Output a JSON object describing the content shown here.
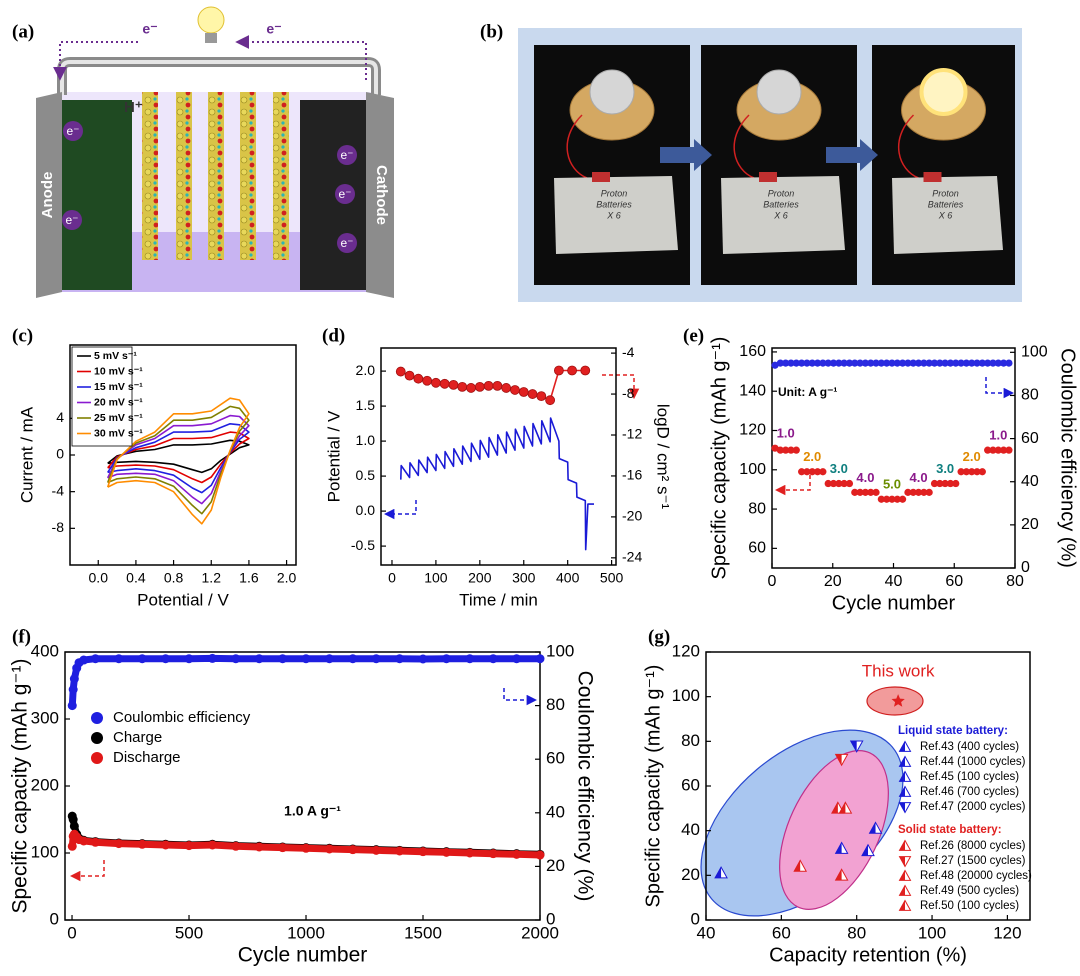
{
  "diagram": {
    "label": "(a)",
    "electron_flow": [
      "e⁻",
      "e⁻"
    ],
    "ion": "H⁺",
    "anode": "Anode",
    "cathode": "Cathode",
    "electrons": [
      "e⁻",
      "e⁻",
      "e⁻",
      "e⁻",
      "e⁻"
    ]
  },
  "photos": {
    "label": "(b)",
    "notes": [
      [
        "Proton",
        "Batteries",
        "X 6"
      ],
      [
        "Proton",
        "Batteries",
        "X 6"
      ],
      [
        "Proton",
        "Batteries",
        "X 6"
      ]
    ]
  },
  "chart_data": [
    {
      "panel": "(c)",
      "type": "line",
      "xlabel": "Potential / V",
      "ylabel": "Current / mA",
      "xlim": [
        -0.3,
        2.1
      ],
      "xticks": [
        {
          "value": 0,
          "label": "0.0"
        },
        0.4,
        0.8,
        1.2,
        1.6,
        {
          "value": 2,
          "label": "2.0"
        }
      ],
      "ylim": [
        -12,
        12
      ],
      "yticks": [
        -8,
        -4,
        0,
        4
      ],
      "legend": "upper left",
      "x": [
        0.1,
        0.2,
        0.4,
        0.6,
        0.8,
        1.0,
        1.2,
        1.4,
        1.5,
        1.6,
        1.5,
        1.4,
        1.3,
        1.2,
        1.1,
        1.0,
        0.8,
        0.6,
        0.4,
        0.2,
        0.1
      ],
      "series": [
        {
          "name": "5 mV s⁻¹",
          "color": "#000000",
          "values": [
            -0.9,
            -0.1,
            0.4,
            0.6,
            1.1,
            1.1,
            1.2,
            1.6,
            1.5,
            1.1,
            0.8,
            0.1,
            -0.6,
            -1.5,
            -1.9,
            -1.6,
            -1.0,
            -0.8,
            -0.7,
            -0.8,
            -0.9
          ]
        },
        {
          "name": "10 mV s⁻¹",
          "color": "#e00000",
          "values": [
            -1.4,
            -0.2,
            0.6,
            1.0,
            1.8,
            1.8,
            1.9,
            2.5,
            2.4,
            1.8,
            1.2,
            0.2,
            -1.0,
            -2.4,
            -3.0,
            -2.6,
            -1.6,
            -1.2,
            -1.1,
            -1.2,
            -1.4
          ]
        },
        {
          "name": "15 mV s⁻¹",
          "color": "#2020e0",
          "values": [
            -1.9,
            -0.3,
            0.8,
            1.4,
            2.5,
            2.5,
            2.6,
            3.4,
            3.3,
            2.5,
            1.7,
            0.3,
            -1.4,
            -3.3,
            -4.1,
            -3.6,
            -2.2,
            -1.7,
            -1.5,
            -1.7,
            -1.9
          ]
        },
        {
          "name": "20 mV s⁻¹",
          "color": "#8a1ad0",
          "values": [
            -2.5,
            -0.4,
            1.1,
            1.8,
            3.2,
            3.2,
            3.4,
            4.3,
            4.2,
            3.2,
            2.1,
            0.4,
            -1.8,
            -4.2,
            -5.3,
            -4.6,
            -2.8,
            -2.1,
            -2.0,
            -2.1,
            -2.5
          ]
        },
        {
          "name": "25 mV s⁻¹",
          "color": "#808000",
          "values": [
            -3.0,
            -0.4,
            1.3,
            2.1,
            3.8,
            3.8,
            4.1,
            5.3,
            5.1,
            3.8,
            2.6,
            0.4,
            -2.1,
            -5.1,
            -6.4,
            -5.5,
            -3.4,
            -2.6,
            -2.4,
            -2.6,
            -3.0
          ]
        },
        {
          "name": "30 mV s⁻¹",
          "color": "#ff8c00",
          "values": [
            -3.5,
            -0.5,
            1.5,
            2.5,
            4.5,
            4.5,
            4.8,
            6.2,
            6.0,
            4.5,
            3.0,
            0.5,
            -2.5,
            -6.0,
            -7.5,
            -6.5,
            -4.0,
            -3.0,
            -2.8,
            -3.0,
            -3.5
          ]
        }
      ]
    },
    {
      "panel": "(d)",
      "type": "line",
      "xlabel": "Time / min",
      "ylabel": "Potential / V",
      "y2label": "logD / cm² s⁻¹",
      "xlim": [
        -25,
        510
      ],
      "xticks": [
        0,
        100,
        200,
        300,
        400,
        500
      ],
      "ylim": [
        -0.77,
        2.33
      ],
      "yticks": [
        -0.5,
        {
          "value": 0,
          "label": "0.0"
        },
        0.5,
        {
          "value": 1,
          "label": "1.0"
        },
        1.5,
        {
          "value": 2,
          "label": "2.0"
        }
      ],
      "y2lim": [
        -24.7,
        -3.5
      ],
      "y2ticks": [
        -4,
        -8,
        -12,
        -16,
        -20,
        -24
      ],
      "series": [
        {
          "color": "#e02020",
          "axis": "y2",
          "marker": "circle",
          "line": true,
          "x": [
            20,
            40,
            60,
            80,
            100,
            120,
            140,
            160,
            180,
            200,
            220,
            240,
            260,
            280,
            300,
            320,
            340,
            360,
            380,
            410,
            440
          ],
          "values": [
            -5.8,
            -6.2,
            -6.5,
            -6.7,
            -6.9,
            -7.0,
            -7.1,
            -7.3,
            -7.4,
            -7.3,
            -7.2,
            -7.2,
            -7.4,
            -7.6,
            -7.8,
            -8.0,
            -8.2,
            -8.6,
            -5.7,
            -5.7,
            -5.7
          ]
        },
        {
          "color": "#1a1ad6",
          "line": true,
          "x": [
            20,
            21,
            40,
            41,
            60,
            61,
            80,
            81,
            100,
            101,
            120,
            121,
            140,
            141,
            160,
            161,
            180,
            181,
            200,
            201,
            220,
            221,
            240,
            241,
            260,
            261,
            280,
            281,
            300,
            301,
            320,
            321,
            340,
            341,
            360,
            361,
            380,
            381,
            400,
            401,
            420,
            421,
            440,
            441,
            446,
            460
          ],
          "values": [
            0.45,
            0.65,
            0.48,
            0.69,
            0.51,
            0.73,
            0.55,
            0.77,
            0.58,
            0.81,
            0.61,
            0.85,
            0.64,
            0.89,
            0.67,
            0.93,
            0.71,
            0.97,
            0.74,
            1.01,
            0.77,
            1.05,
            0.8,
            1.09,
            0.83,
            1.13,
            0.87,
            1.17,
            0.9,
            1.21,
            0.93,
            1.25,
            0.96,
            1.29,
            0.99,
            1.33,
            1.0,
            0.75,
            0.7,
            0.45,
            0.4,
            0.2,
            0.15,
            -0.55,
            0.1,
            0.1
          ]
        }
      ]
    },
    {
      "panel": "(e)",
      "type": "line",
      "xlabel": "Cycle number",
      "ylabel": "Specific capacity (mAh g⁻¹)",
      "y2label": "Coulombic efficiency (%)",
      "xlim": [
        0,
        80
      ],
      "xticks": [
        0,
        20,
        40,
        60,
        80
      ],
      "ylim": [
        50,
        162
      ],
      "yticks": [
        60,
        80,
        100,
        120,
        140,
        160
      ],
      "y2lim": [
        0,
        102
      ],
      "y2ticks": [
        0,
        20,
        40,
        60,
        80,
        100
      ],
      "unit_note": "Unit: A g⁻¹",
      "rate_labels": [
        {
          "text": "1.0",
          "color": "#8b1a8b"
        },
        {
          "text": "2.0",
          "color": "#e08a00"
        },
        {
          "text": "3.0",
          "color": "#0f7f7f"
        },
        {
          "text": "4.0",
          "color": "#8b1a8b"
        },
        {
          "text": "5.0",
          "color": "#6b8e00"
        },
        {
          "text": "4.0",
          "color": "#8b1a8b"
        },
        {
          "text": "3.0",
          "color": "#0f7f7f"
        },
        {
          "text": "2.0",
          "color": "#e08a00"
        },
        {
          "text": "1.0",
          "color": "#8b1a8b"
        }
      ],
      "x": [
        1,
        2.75,
        4.5,
        6.25,
        8,
        9.75,
        11.5,
        13.25,
        15,
        16.75,
        18.5,
        20.25,
        22,
        23.75,
        25.5,
        27.25,
        29,
        30.75,
        32.5,
        34.25,
        36,
        37.75,
        39.5,
        41.25,
        43,
        44.75,
        46.5,
        48.25,
        50,
        51.75,
        53.5,
        55.25,
        57,
        58.75,
        60.5,
        62.25,
        64,
        65.75,
        67.5,
        69.25,
        71,
        72.75,
        74.5,
        76.25,
        78
      ],
      "series": [
        {
          "color": "#2a2ae0",
          "marker": "circle",
          "axis": "y2",
          "values": [
            94,
            95,
            95,
            95,
            95,
            95,
            95,
            95,
            95,
            95,
            95,
            95,
            95,
            95,
            95,
            95,
            95,
            95,
            95,
            95,
            95,
            95,
            95,
            95,
            95,
            95,
            95,
            95,
            95,
            95,
            95,
            95,
            95,
            95,
            95,
            95,
            95,
            95,
            95,
            95,
            95,
            95,
            95,
            95,
            95
          ]
        },
        {
          "color": "#e02020",
          "marker": "circle",
          "values": [
            111,
            110,
            110,
            110,
            110,
            99,
            99,
            99,
            99,
            99,
            93,
            93,
            93,
            93,
            93,
            88.5,
            88.5,
            88.5,
            88.5,
            88.5,
            85,
            85,
            85,
            85,
            85,
            88.5,
            88.5,
            88.5,
            88.5,
            88.5,
            93,
            93,
            93,
            93,
            93,
            99,
            99,
            99,
            99,
            99,
            110,
            110,
            110,
            110,
            110
          ]
        }
      ]
    },
    {
      "panel": "(f)",
      "type": "line",
      "xlabel": "Cycle number",
      "ylabel": "Specific capacity (mAh g⁻¹)",
      "y2label": "Coulombic efficiency (%)",
      "xlim": [
        -30,
        2000
      ],
      "xticks": [
        0,
        500,
        1000,
        1500,
        2000
      ],
      "ylim": [
        0,
        400
      ],
      "yticks": [
        0,
        100,
        200,
        300,
        400
      ],
      "y2lim": [
        0,
        100
      ],
      "y2ticks": [
        0,
        20,
        40,
        60,
        80,
        100
      ],
      "annotation": "1.0 A g⁻¹",
      "legend": "upper left",
      "x": [
        1,
        5,
        10,
        20,
        30,
        50,
        100,
        200,
        300,
        400,
        500,
        600,
        700,
        800,
        900,
        1000,
        1100,
        1200,
        1300,
        1400,
        1500,
        1600,
        1700,
        1800,
        1900,
        2000
      ],
      "series": [
        {
          "name": "Coulombic efficiency",
          "color": "#1f1fe0",
          "marker": "circle",
          "line": true,
          "axis": "y2",
          "values": [
            80,
            86,
            90,
            94,
            96,
            97,
            97.5,
            97.5,
            97.5,
            97.5,
            97.5,
            97.6,
            97.5,
            97.5,
            97.5,
            97.5,
            97.5,
            97.5,
            97.5,
            97.5,
            97.4,
            97.5,
            97.5,
            97.5,
            97.5,
            97.5
          ]
        },
        {
          "name": "Charge",
          "color": "#000000",
          "marker": "circle",
          "line": true,
          "values": [
            155,
            150,
            140,
            128,
            122,
            119,
            117,
            115,
            114,
            113,
            112,
            113,
            111,
            110,
            109,
            108,
            107,
            106,
            105,
            104,
            103,
            102,
            101,
            100,
            99,
            98
          ]
        },
        {
          "name": "Discharge",
          "color": "#e01818",
          "marker": "circle",
          "line": true,
          "values": [
            110,
            125,
            128,
            124,
            120,
            118,
            116,
            114,
            113,
            112,
            111,
            112,
            110,
            109,
            108,
            107,
            106,
            105,
            104,
            103,
            102,
            101,
            100,
            99,
            98,
            97
          ]
        }
      ]
    },
    {
      "panel": "(g)",
      "type": "scatter",
      "xlabel": "Capacity retention (%)",
      "ylabel": "Specific capacity (mAh g⁻¹)",
      "xlim": [
        40,
        126
      ],
      "xticks": [
        40,
        60,
        80,
        100,
        120
      ],
      "ylim": [
        0,
        120
      ],
      "yticks": [
        0,
        20,
        40,
        60,
        80,
        100,
        120
      ],
      "highlight": {
        "name": "This work",
        "color": "#e02020",
        "x": [
          91
        ],
        "values": [
          98
        ]
      },
      "groups": [
        {
          "name": "Liquid state battery:",
          "color": "#1a1ad6",
          "series": [
            {
              "name": "Ref.43 (400 cycles)",
              "marker": "up",
              "x": [
                44
              ],
              "values": [
                21
              ]
            },
            {
              "name": "Ref.44 (1000 cycles)",
              "marker": "up",
              "x": [
                76
              ],
              "values": [
                32
              ]
            },
            {
              "name": "Ref.45 (100 cycles)",
              "marker": "up",
              "x": [
                83
              ],
              "values": [
                31
              ]
            },
            {
              "name": "Ref.46 (700 cycles)",
              "marker": "up",
              "x": [
                85
              ],
              "values": [
                41
              ]
            },
            {
              "name": "Ref.47 (2000 cycles)",
              "marker": "down",
              "x": [
                80
              ],
              "values": [
                78
              ]
            }
          ]
        },
        {
          "name": "Solid state battery:",
          "color": "#e02020",
          "series": [
            {
              "name": "Ref.26 (8000 cycles)",
              "marker": "up",
              "x": [
                75
              ],
              "values": [
                50
              ]
            },
            {
              "name": "Ref.27 (1500 cycles)",
              "marker": "down",
              "x": [
                76
              ],
              "values": [
                72
              ]
            },
            {
              "name": "Ref.48 (20000 cycles)",
              "marker": "up",
              "x": [
                77
              ],
              "values": [
                50
              ]
            },
            {
              "name": "Ref.49 (500 cycles)",
              "marker": "up",
              "x": [
                76
              ],
              "values": [
                20
              ]
            },
            {
              "name": "Ref.50 (100 cycles)",
              "marker": "up",
              "x": [
                65
              ],
              "values": [
                24
              ]
            }
          ]
        }
      ]
    }
  ]
}
